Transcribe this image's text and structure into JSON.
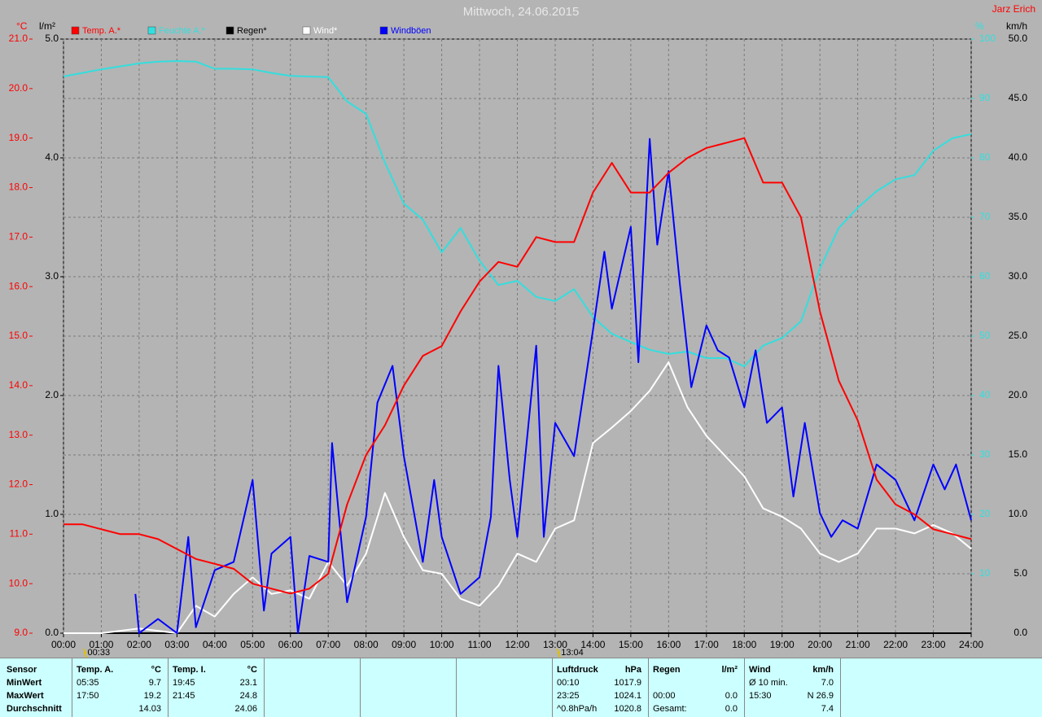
{
  "chart_data": {
    "type": "line",
    "title": "Mittwoch, 24.06.2015",
    "author": "Jarz Erich",
    "y_label": "°C",
    "y_rain_label": "l/m²",
    "y2_label": "%",
    "y3_label": "km/h",
    "xlim": [
      0,
      24
    ],
    "xticks": [
      {
        "value": 0,
        "label": "00:00"
      },
      {
        "value": 1,
        "label": "01:00"
      },
      {
        "value": 2,
        "label": "02:00"
      },
      {
        "value": 3,
        "label": "03:00"
      },
      {
        "value": 4,
        "label": "04:00"
      },
      {
        "value": 5,
        "label": "05:00"
      },
      {
        "value": 6,
        "label": "06:00"
      },
      {
        "value": 7,
        "label": "07:00"
      },
      {
        "value": 8,
        "label": "08:00"
      },
      {
        "value": 9,
        "label": "09:00"
      },
      {
        "value": 10,
        "label": "10:00"
      },
      {
        "value": 11,
        "label": "11:00"
      },
      {
        "value": 12,
        "label": "12:00"
      },
      {
        "value": 13,
        "label": "13:00"
      },
      {
        "value": 14,
        "label": "14:00"
      },
      {
        "value": 15,
        "label": "15:00"
      },
      {
        "value": 16,
        "label": "16:00"
      },
      {
        "value": 17,
        "label": "17:00"
      },
      {
        "value": 18,
        "label": "18:00"
      },
      {
        "value": 19,
        "label": "19:00"
      },
      {
        "value": 20,
        "label": "20:00"
      },
      {
        "value": 21,
        "label": "21:00"
      },
      {
        "value": 22,
        "label": "22:00"
      },
      {
        "value": 23,
        "label": "23:00"
      },
      {
        "value": 24,
        "label": "24:00"
      }
    ],
    "ylim": [
      9,
      21
    ],
    "yticks": [
      {
        "value": 9,
        "label": "9.0"
      },
      {
        "value": 10,
        "label": "10.0"
      },
      {
        "value": 11,
        "label": "11.0"
      },
      {
        "value": 12,
        "label": "12.0"
      },
      {
        "value": 13,
        "label": "13.0"
      },
      {
        "value": 14,
        "label": "14.0"
      },
      {
        "value": 15,
        "label": "15.0"
      },
      {
        "value": 16,
        "label": "16.0"
      },
      {
        "value": 17,
        "label": "17.0"
      },
      {
        "value": 18,
        "label": "18.0"
      },
      {
        "value": 19,
        "label": "19.0"
      },
      {
        "value": 20,
        "label": "20.0"
      },
      {
        "value": 21,
        "label": "21.0"
      }
    ],
    "ylim_rain": [
      0,
      5
    ],
    "yticks_rain": [
      {
        "value": 0,
        "label": "0.0"
      },
      {
        "value": 1,
        "label": "1.0"
      },
      {
        "value": 2,
        "label": "2.0"
      },
      {
        "value": 3,
        "label": "3.0"
      },
      {
        "value": 4,
        "label": "4.0"
      },
      {
        "value": 5,
        "label": "5.0"
      }
    ],
    "y2lim": [
      0,
      100
    ],
    "y2ticks": [
      10,
      20,
      30,
      40,
      50,
      60,
      70,
      80,
      90,
      100
    ],
    "y3lim": [
      0,
      50
    ],
    "y3ticks": [
      {
        "value": 0,
        "label": "0.0"
      },
      {
        "value": 5,
        "label": "5.0"
      },
      {
        "value": 10,
        "label": "10.0"
      },
      {
        "value": 15,
        "label": "15.0"
      },
      {
        "value": 20,
        "label": "20.0"
      },
      {
        "value": 25,
        "label": "25.0"
      },
      {
        "value": 30,
        "label": "30.0"
      },
      {
        "value": 35,
        "label": "35.0"
      },
      {
        "value": 40,
        "label": "40.0"
      },
      {
        "value": 45,
        "label": "45.0"
      },
      {
        "value": 50,
        "label": "50.0"
      }
    ],
    "grid": true,
    "annotations": [
      {
        "x": 0.55,
        "label": "00:33"
      },
      {
        "x": 13.07,
        "label": "13:04"
      }
    ],
    "x": [
      0,
      0.5,
      1,
      1.5,
      2,
      2.5,
      3,
      3.5,
      4,
      4.5,
      5,
      5.5,
      6,
      6.5,
      7,
      7.5,
      8,
      8.5,
      9,
      9.5,
      10,
      10.5,
      11,
      11.5,
      12,
      12.5,
      13,
      13.5,
      14,
      14.5,
      15,
      15.5,
      16,
      16.5,
      17,
      17.5,
      18,
      18.5,
      19,
      19.5,
      20,
      20.5,
      21,
      21.5,
      22,
      22.5,
      23,
      23.5,
      24
    ],
    "series": [
      {
        "name": "Temp. A.*",
        "color": "#ff0000",
        "axis": "y",
        "values": [
          11.2,
          11.2,
          11.1,
          11.0,
          11.0,
          10.9,
          10.7,
          10.5,
          10.4,
          10.3,
          10.0,
          9.9,
          9.8,
          9.9,
          10.2,
          11.6,
          12.6,
          13.2,
          14.0,
          14.6,
          14.8,
          15.5,
          16.1,
          16.5,
          16.4,
          17.0,
          16.9,
          16.9,
          17.9,
          18.5,
          17.9,
          17.9,
          18.3,
          18.6,
          18.8,
          18.9,
          19.0,
          18.1,
          18.1,
          17.4,
          15.5,
          14.1,
          13.3,
          12.1,
          11.6,
          11.4,
          11.1,
          11.0,
          10.9
        ]
      },
      {
        "name": "Feuchte A.*",
        "color": "#33dede",
        "axis": "y2",
        "values": [
          93.7,
          94.3,
          94.9,
          95.4,
          95.9,
          96.2,
          96.3,
          96.2,
          95.0,
          95.0,
          94.9,
          94.3,
          93.8,
          93.7,
          93.6,
          89.5,
          87.4,
          79.2,
          72.3,
          69.6,
          64.1,
          68.2,
          62.7,
          58.6,
          59.3,
          56.6,
          55.9,
          57.9,
          53.2,
          50.4,
          49.0,
          47.7,
          47.0,
          47.4,
          46.3,
          46.3,
          44.9,
          48.4,
          49.7,
          52.5,
          61.4,
          68.2,
          71.6,
          74.4,
          76.4,
          77.1,
          81.2,
          83.3,
          84.0
        ]
      },
      {
        "name": "Regen*",
        "color": "#000000",
        "axis": "y_rain",
        "x": [
          0,
          24
        ],
        "values": [
          0.0,
          0.0
        ]
      },
      {
        "name": "Wind*",
        "color": "#ffffff",
        "axis": "y3",
        "values": [
          0,
          0,
          0,
          0.2,
          0.4,
          0.2,
          0,
          2.3,
          1.4,
          3.3,
          4.7,
          3.3,
          3.6,
          2.9,
          6.0,
          4.0,
          6.7,
          11.8,
          8.1,
          5.3,
          5.0,
          2.9,
          2.3,
          4.0,
          6.7,
          6.0,
          8.8,
          9.5,
          16.0,
          17.3,
          18.7,
          20.4,
          22.8,
          19.0,
          16.6,
          14.9,
          13.2,
          10.5,
          9.8,
          8.8,
          6.7,
          6.0,
          6.7,
          8.8,
          8.8,
          8.4,
          9.1,
          8.4,
          7.1
        ]
      },
      {
        "name": "Windböen",
        "color": "#0000ff",
        "axis": "y3",
        "x": [
          1.9,
          2.0,
          2.5,
          3.0,
          3.3,
          3.5,
          4.0,
          4.5,
          5.0,
          5.3,
          5.5,
          6.0,
          6.2,
          6.5,
          7.0,
          7.1,
          7.5,
          8.0,
          8.3,
          8.7,
          9.0,
          9.5,
          9.8,
          10.0,
          10.5,
          11.0,
          11.3,
          11.5,
          11.8,
          12.0,
          12.5,
          12.7,
          13.0,
          13.5,
          14.0,
          14.3,
          14.5,
          15.0,
          15.2,
          15.5,
          15.7,
          16.0,
          16.3,
          16.6,
          17.0,
          17.3,
          17.6,
          18.0,
          18.3,
          18.6,
          19.0,
          19.3,
          19.6,
          20.0,
          20.3,
          20.6,
          21.0,
          21.5,
          22.0,
          22.5,
          23.0,
          23.3,
          23.6,
          24.0
        ],
        "values": [
          3.3,
          0.0,
          1.2,
          0.0,
          8.1,
          0.5,
          5.3,
          6.0,
          12.9,
          1.9,
          6.7,
          8.1,
          0.0,
          6.5,
          6.0,
          16.0,
          2.6,
          9.8,
          19.4,
          22.5,
          14.9,
          6.0,
          12.9,
          8.1,
          3.3,
          4.7,
          9.8,
          22.5,
          12.9,
          8.1,
          24.2,
          8.1,
          17.7,
          14.9,
          25.5,
          32.1,
          27.3,
          34.2,
          22.8,
          41.6,
          32.7,
          38.9,
          29.3,
          20.7,
          25.9,
          23.8,
          23.2,
          19.0,
          23.8,
          17.7,
          19.0,
          11.5,
          17.7,
          10.1,
          8.1,
          9.5,
          8.8,
          14.2,
          12.9,
          9.5,
          14.2,
          12.1,
          14.2,
          9.5
        ]
      }
    ]
  },
  "table": {
    "header": "Sensor",
    "row_labels": [
      "MinWert",
      "MaxWert",
      "Durchschnitt"
    ],
    "groups": [
      {
        "title": "Temp. A.",
        "unit": "°C",
        "rows": [
          [
            "05:35",
            "9.7"
          ],
          [
            "17:50",
            "19.2"
          ],
          [
            null,
            "14.03"
          ]
        ]
      },
      {
        "title": "Temp. I.",
        "unit": "°C",
        "rows": [
          [
            "19:45",
            "23.1"
          ],
          [
            "21:45",
            "24.8"
          ],
          [
            null,
            "24.06"
          ]
        ]
      },
      {
        "title": "Luftdruck",
        "unit": "hPa",
        "rows": [
          [
            "00:10",
            "1017.9"
          ],
          [
            "23:25",
            "1024.1"
          ],
          [
            "^0.8hPa/h",
            "1020.8"
          ]
        ]
      },
      {
        "title": "Regen",
        "unit": "l/m²",
        "rows": [
          [
            null,
            null
          ],
          [
            "00:00",
            "0.0"
          ],
          [
            "Gesamt:",
            "0.0"
          ]
        ]
      },
      {
        "title": "Wind",
        "unit": "km/h",
        "rows": [
          [
            "Ø 10 min.",
            "7.0"
          ],
          [
            "15:30",
            "N 26.9"
          ],
          [
            null,
            "7.4"
          ]
        ]
      }
    ]
  }
}
